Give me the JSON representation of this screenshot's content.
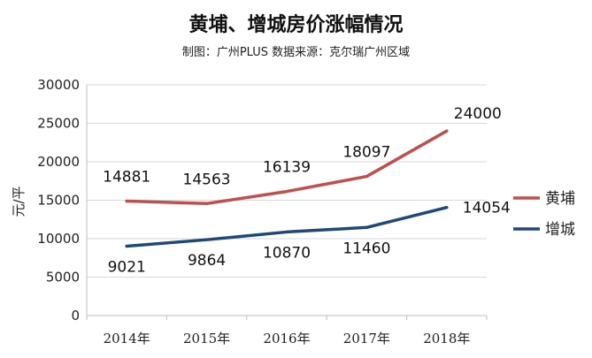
{
  "chart_data": {
    "type": "line",
    "title": "黄埔、增城房价涨幅情况",
    "subtitle": "制图：广州PLUS 数据来源：克尔瑞广州区域",
    "xlabel": "",
    "ylabel": "元/平",
    "categories": [
      "2014年",
      "2015年",
      "2016年",
      "2017年",
      "2018年"
    ],
    "ylim": [
      0,
      30000
    ],
    "yticks": [
      0,
      5000,
      10000,
      15000,
      20000,
      25000,
      30000
    ],
    "grid": true,
    "legend_position": "right",
    "series": [
      {
        "name": "黄埔",
        "color": "#c0504d",
        "values": [
          14881,
          14563,
          16139,
          18097,
          24000
        ]
      },
      {
        "name": "增城",
        "color": "#1f497d",
        "values": [
          9021,
          9864,
          10870,
          11460,
          14054
        ]
      }
    ]
  }
}
